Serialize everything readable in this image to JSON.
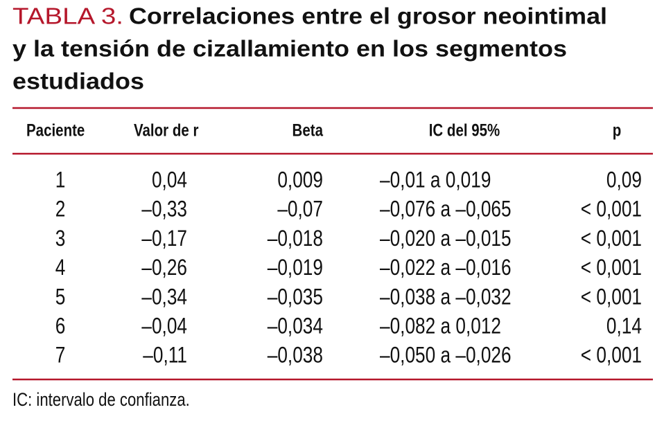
{
  "header": {
    "label": "TABLA 3.",
    "title_lines": [
      "Correlaciones entre el grosor neointimal",
      "y la tensión de cizallamiento en los segmentos",
      "estudiados"
    ]
  },
  "table": {
    "columns": [
      "Paciente",
      "Valor de r",
      "Beta",
      "IC del 95%",
      "p"
    ],
    "rows": [
      [
        "1",
        "0,04",
        "0,009",
        "–0,01 a 0,019",
        "0,09"
      ],
      [
        "2",
        "–0,33",
        "–0,07",
        "–0,076 a –0,065",
        "< 0,001"
      ],
      [
        "3",
        "–0,17",
        "–0,018",
        "–0,020 a –0,015",
        "< 0,001"
      ],
      [
        "4",
        "–0,26",
        "–0,019",
        "–0,022 a –0,016",
        "< 0,001"
      ],
      [
        "5",
        "–0,34",
        "–0,035",
        "–0,038 a –0,032",
        "< 0,001"
      ],
      [
        "6",
        "–0,04",
        "–0,034",
        "–0,082 a 0,012",
        "0,14"
      ],
      [
        "7",
        "–0,11",
        "–0,038",
        "–0,050 a –0,026",
        "< 0,001"
      ]
    ]
  },
  "footnote": "IC: intervalo de confianza."
}
